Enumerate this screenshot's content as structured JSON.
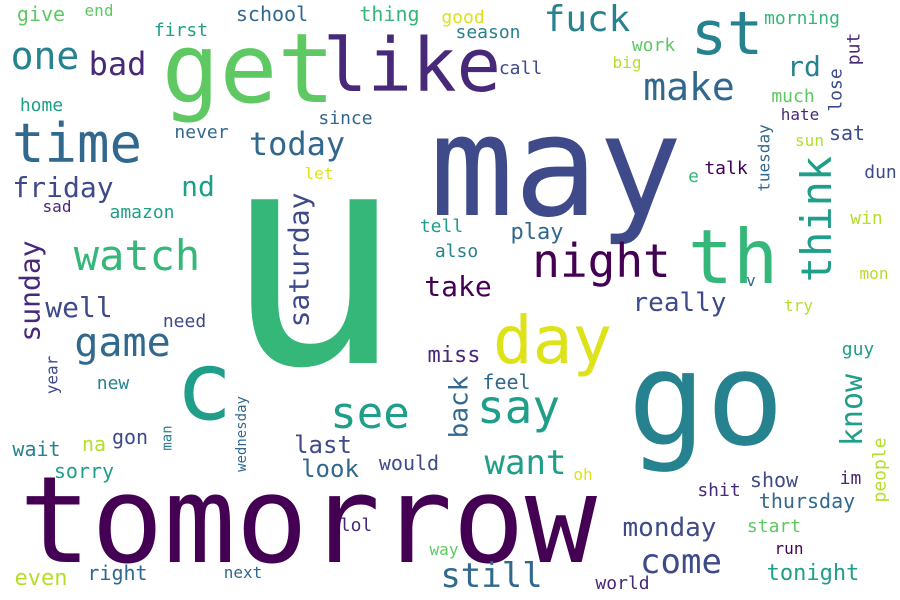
{
  "words": [
    {
      "text": "u",
      "color": "#35b779",
      "v": 0
    },
    {
      "text": "may",
      "color": "#3e4a89",
      "v": 0
    },
    {
      "text": "tomorrow",
      "color": "#440154",
      "v": 0
    },
    {
      "text": "go",
      "color": "#26828e",
      "v": 0
    },
    {
      "text": "get",
      "color": "#5ec962",
      "v": 0
    },
    {
      "text": "like",
      "color": "#482878",
      "v": 0
    },
    {
      "text": "th",
      "color": "#35b779",
      "v": 0
    },
    {
      "text": "day",
      "color": "#dde318",
      "v": 0
    },
    {
      "text": "c",
      "color": "#1f9e89",
      "v": 0
    },
    {
      "text": "time",
      "color": "#31688e",
      "v": 0
    },
    {
      "text": "st",
      "color": "#26828e",
      "v": 0
    },
    {
      "text": "night",
      "color": "#440154",
      "v": 0
    },
    {
      "text": "say",
      "color": "#1f9e89",
      "v": 0
    },
    {
      "text": "see",
      "color": "#1f9e89",
      "v": 0
    },
    {
      "text": "watch",
      "color": "#35b779",
      "v": 0
    },
    {
      "text": "game",
      "color": "#31688e",
      "v": 0
    },
    {
      "text": "think",
      "color": "#1f9e89",
      "v": 1
    },
    {
      "text": "fuck",
      "color": "#26828e",
      "v": 0
    },
    {
      "text": "make",
      "color": "#31688e",
      "v": 0
    },
    {
      "text": "one",
      "color": "#26828e",
      "v": 0
    },
    {
      "text": "bad",
      "color": "#482878",
      "v": 0
    },
    {
      "text": "want",
      "color": "#1f9e89",
      "v": 0
    },
    {
      "text": "come",
      "color": "#3e4a89",
      "v": 0
    },
    {
      "text": "still",
      "color": "#31688e",
      "v": 0
    },
    {
      "text": "today",
      "color": "#31688e",
      "v": 0
    },
    {
      "text": "friday",
      "color": "#3e4a89",
      "v": 0
    },
    {
      "text": "well",
      "color": "#3e4a89",
      "v": 0
    },
    {
      "text": "know",
      "color": "#1f9e89",
      "v": 1
    },
    {
      "text": "sunday",
      "color": "#482878",
      "v": 1
    },
    {
      "text": "saturday",
      "color": "#3e4a89",
      "v": 1
    },
    {
      "text": "take",
      "color": "#440154",
      "v": 0
    },
    {
      "text": "nd",
      "color": "#1f9e89",
      "v": 0
    },
    {
      "text": "rd",
      "color": "#26828e",
      "v": 0
    },
    {
      "text": "really",
      "color": "#3e4a89",
      "v": 0
    },
    {
      "text": "monday",
      "color": "#3e4a89",
      "v": 0
    },
    {
      "text": "back",
      "color": "#31688e",
      "v": 1
    },
    {
      "text": "last",
      "color": "#3e4a89",
      "v": 0
    },
    {
      "text": "look",
      "color": "#31688e",
      "v": 0
    },
    {
      "text": "play",
      "color": "#31688e",
      "v": 0
    },
    {
      "text": "miss",
      "color": "#482878",
      "v": 0
    },
    {
      "text": "tonight",
      "color": "#1f9e89",
      "v": 0
    },
    {
      "text": "thursday",
      "color": "#31688e",
      "v": 0
    },
    {
      "text": "even",
      "color": "#b5de2b",
      "v": 0
    },
    {
      "text": "show",
      "color": "#3e4a89",
      "v": 0
    },
    {
      "text": "would",
      "color": "#3e4a89",
      "v": 0
    },
    {
      "text": "feel",
      "color": "#31688e",
      "v": 0
    },
    {
      "text": "right",
      "color": "#31688e",
      "v": 0
    },
    {
      "text": "wait",
      "color": "#26828e",
      "v": 0
    },
    {
      "text": "sorry",
      "color": "#1f9e89",
      "v": 0
    },
    {
      "text": "gon",
      "color": "#3e4a89",
      "v": 0
    },
    {
      "text": "na",
      "color": "#b5de2b",
      "v": 0
    },
    {
      "text": "school",
      "color": "#31688e",
      "v": 0
    },
    {
      "text": "thing",
      "color": "#35b779",
      "v": 0
    },
    {
      "text": "give",
      "color": "#5ec962",
      "v": 0
    },
    {
      "text": "good",
      "color": "#dde318",
      "v": 0
    },
    {
      "text": "season",
      "color": "#26828e",
      "v": 0
    },
    {
      "text": "call",
      "color": "#3e4a89",
      "v": 0
    },
    {
      "text": "work",
      "color": "#5ec962",
      "v": 0
    },
    {
      "text": "morning",
      "color": "#35b779",
      "v": 0
    },
    {
      "text": "end",
      "color": "#5ec962",
      "v": 0
    },
    {
      "text": "first",
      "color": "#1f9e89",
      "v": 0
    },
    {
      "text": "big",
      "color": "#b5de2b",
      "v": 0
    },
    {
      "text": "put",
      "color": "#482878",
      "v": 1
    },
    {
      "text": "lose",
      "color": "#3e4a89",
      "v": 1
    },
    {
      "text": "much",
      "color": "#5ec962",
      "v": 0
    },
    {
      "text": "hate",
      "color": "#482878",
      "v": 0
    },
    {
      "text": "sat",
      "color": "#3e4a89",
      "v": 0
    },
    {
      "text": "sun",
      "color": "#b5de2b",
      "v": 0
    },
    {
      "text": "tuesday",
      "color": "#31688e",
      "v": 1
    },
    {
      "text": "talk",
      "color": "#440154",
      "v": 0
    },
    {
      "text": "e",
      "color": "#35b779",
      "v": 0
    },
    {
      "text": "dun",
      "color": "#3e4a89",
      "v": 0
    },
    {
      "text": "win",
      "color": "#b5de2b",
      "v": 0
    },
    {
      "text": "mon",
      "color": "#b5de2b",
      "v": 0
    },
    {
      "text": "v",
      "color": "#31688e",
      "v": 0
    },
    {
      "text": "try",
      "color": "#b5de2b",
      "v": 0
    },
    {
      "text": "guy",
      "color": "#1f9e89",
      "v": 0
    },
    {
      "text": "im",
      "color": "#482878",
      "v": 0
    },
    {
      "text": "people",
      "color": "#b5de2b",
      "v": 1
    },
    {
      "text": "oh",
      "color": "#dde318",
      "v": 0
    },
    {
      "text": "shit",
      "color": "#482878",
      "v": 0
    },
    {
      "text": "start",
      "color": "#5ec962",
      "v": 0
    },
    {
      "text": "run",
      "color": "#440154",
      "v": 0
    },
    {
      "text": "world",
      "color": "#482878",
      "v": 0
    },
    {
      "text": "way",
      "color": "#5ec962",
      "v": 0
    },
    {
      "text": "lol",
      "color": "#482878",
      "v": 0
    },
    {
      "text": "next",
      "color": "#31688e",
      "v": 0
    },
    {
      "text": "never",
      "color": "#31688e",
      "v": 0
    },
    {
      "text": "since",
      "color": "#31688e",
      "v": 0
    },
    {
      "text": "let",
      "color": "#dde318",
      "v": 0
    },
    {
      "text": "tell",
      "color": "#1f9e89",
      "v": 0
    },
    {
      "text": "also",
      "color": "#26828e",
      "v": 0
    },
    {
      "text": "need",
      "color": "#3e4a89",
      "v": 0
    },
    {
      "text": "new",
      "color": "#26828e",
      "v": 0
    },
    {
      "text": "year",
      "color": "#3e4a89",
      "v": 1
    },
    {
      "text": "man",
      "color": "#26828e",
      "v": 1
    },
    {
      "text": "wednesday",
      "color": "#31688e",
      "v": 1
    },
    {
      "text": "home",
      "color": "#1f9e89",
      "v": 0
    },
    {
      "text": "sad",
      "color": "#482878",
      "v": 0
    },
    {
      "text": "amazon",
      "color": "#1f9e89",
      "v": 0
    }
  ]
}
